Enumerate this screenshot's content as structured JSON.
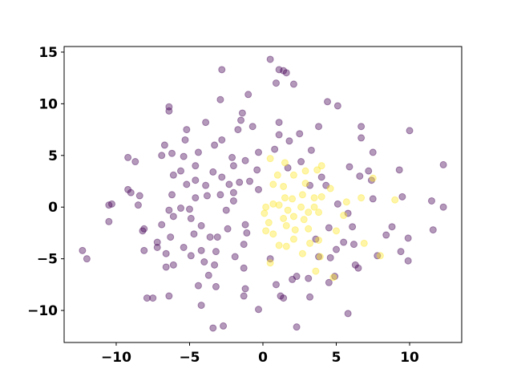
{
  "chart_data": {
    "type": "scatter",
    "xlim": [
      -13.55,
      13.55
    ],
    "ylim": [
      -13.1,
      15.54
    ],
    "xticks": [
      {
        "value": -10,
        "label": "−10"
      },
      {
        "value": -5,
        "label": "−5"
      },
      0,
      5,
      10
    ],
    "yticks": [
      {
        "value": -10,
        "label": "−10"
      },
      {
        "value": -5,
        "label": "−5"
      },
      0,
      5,
      10,
      15
    ],
    "alpha": 0.4,
    "series": [
      {
        "color": "#440154",
        "x": [
          0.5,
          1.1,
          1.4,
          1.6,
          2.1,
          0.9,
          -2.8,
          -1.0,
          -2.9,
          -6.4,
          -6.4,
          -3.9,
          -1.4,
          -1.5,
          -1.7,
          -0.7,
          1.1,
          1.1,
          2.5,
          1.8,
          3.3,
          3.8,
          4.4,
          5.1,
          6.7,
          6.7,
          7.5,
          10.0,
          -5.2,
          -5.3,
          -6.7,
          -6.9,
          -6.2,
          -5.4,
          -4.4,
          -4.6,
          -6.1,
          -5.6,
          -5.2,
          -4.6,
          -3.9,
          -3.4,
          -3.3,
          -2.8,
          -2.1,
          -2.0,
          -1.2,
          -0.3,
          0.8,
          1.7,
          2.6,
          4.0,
          3.2,
          4.3,
          5.9,
          6.6,
          7.2,
          7.4,
          7.5,
          9.3,
          9.5,
          11.5,
          12.3,
          12.3,
          11.6,
          8.8,
          8.4,
          9.9,
          9.9,
          9.4,
          7.8,
          6.2,
          6.3,
          6.5,
          4.6,
          5.0,
          5.5,
          6.1,
          4.5,
          5.8,
          5.1,
          -9.2,
          -8.7,
          -9.2,
          -9.0,
          -8.4,
          -10.5,
          -10.3,
          -10.5,
          -8.5,
          -8.1,
          -8.2,
          -8.1,
          -7.2,
          -6.9,
          -6.4,
          -6.2,
          -5.6,
          -5.0,
          -4.6,
          -3.8,
          -2.9,
          -2.8,
          -2.3,
          -2.0,
          -2.0,
          -1.6,
          -0.9,
          -0.3,
          -0.4,
          -2.5,
          -2.4,
          -3.6,
          -3.1,
          -4.2,
          -4.7,
          -4.9,
          -6.1,
          -6.3,
          -6.6,
          -6.1,
          -6.6,
          -7.2,
          -5.4,
          -4.9,
          -4.2,
          -4.0,
          -3.2,
          -3.3,
          -1.9,
          -1.3,
          -1.1,
          -1.2,
          -3.7,
          -3.2,
          -4.4,
          -6.4,
          -7.5,
          -7.9,
          -4.2,
          -3.4,
          -2.7,
          -1.3,
          -1.2,
          -0.3,
          0.9,
          1.2,
          1.4,
          2.3,
          3.2,
          3.1,
          2.0,
          4.5,
          4.9,
          2.3,
          5.8,
          -12.3,
          -12.0,
          3.8,
          0.5,
          -1.3,
          3.6
        ],
        "y": [
          14.3,
          13.3,
          13.2,
          13.0,
          11.9,
          12.0,
          13.3,
          10.9,
          10.4,
          9.7,
          9.3,
          8.2,
          9.1,
          8.4,
          7.5,
          7.8,
          8.2,
          7.0,
          7.1,
          6.4,
          5.5,
          7.8,
          10.2,
          9.8,
          7.8,
          6.7,
          5.3,
          7.4,
          7.5,
          6.5,
          6.0,
          5.0,
          5.2,
          4.9,
          5.3,
          4.0,
          3.1,
          3.5,
          2.2,
          2.6,
          2.1,
          3.4,
          6.0,
          6.5,
          4.8,
          4.0,
          4.5,
          5.3,
          5.6,
          3.8,
          4.4,
          2.9,
          2.1,
          2.1,
          3.9,
          3.0,
          3.5,
          2.6,
          0.8,
          3.6,
          1.0,
          0.6,
          4.1,
          0,
          -2.2,
          -1.9,
          -2.7,
          -3.0,
          -5.2,
          -4.3,
          -4.7,
          -3.6,
          -5.6,
          -5.9,
          -4.9,
          -4.1,
          -3.4,
          -1.9,
          -2.0,
          -0.6,
          0.3,
          4.8,
          4.4,
          1.7,
          1.4,
          1.1,
          0.2,
          0.3,
          -1.4,
          0.2,
          -2.1,
          -2.3,
          -4.2,
          -3.4,
          -1.7,
          -0.3,
          1.2,
          -0.1,
          -0.2,
          0.9,
          1.1,
          1.2,
          2.9,
          2.2,
          1.4,
          0.6,
          2.4,
          2.5,
          1.7,
          3.6,
          -0.3,
          -2.1,
          -2.9,
          -2.9,
          -1.8,
          -2.6,
          -1.1,
          -0.9,
          -2.9,
          -4.5,
          -5.6,
          -5.8,
          -3.9,
          -3.9,
          -4.7,
          -4.2,
          -5.3,
          -4.3,
          -5.6,
          -4.8,
          -3.6,
          -2.5,
          -1.7,
          -6.6,
          -7.7,
          -7.6,
          -8.6,
          -8.8,
          -8.8,
          -9.5,
          -11.7,
          -11.5,
          -8.6,
          -7.9,
          -9.9,
          -7.5,
          -8.6,
          -8.8,
          -6.7,
          -8.7,
          -6.9,
          -7.0,
          -7.3,
          -6.7,
          -11.6,
          -10.3,
          -4.2,
          -5.0,
          -4.8,
          -5.0,
          -5.9,
          -3.1
        ]
      },
      {
        "color": "#fde725",
        "x": [
          0.5,
          1.5,
          1.0,
          0.7,
          2.1,
          2.9,
          2.9,
          3.7,
          4.0,
          4.6,
          3.5,
          4.0,
          3.5,
          3.8,
          2.6,
          2.0,
          1.5,
          1.1,
          0.7,
          0.2,
          0.1,
          0.4,
          0.2,
          0.7,
          1.4,
          1.7,
          1.6,
          2.1,
          2.8,
          3.1,
          3.8,
          3.2,
          3.9,
          2.7,
          2.1,
          1.6,
          1.1,
          0.5,
          3.6,
          4.8,
          5.5,
          5.7,
          6.7,
          7.5,
          8.0,
          9.0,
          6.9,
          5.0,
          3.1,
          2.7,
          2.2,
          1.4
        ],
        "y": [
          4.7,
          4.3,
          3.1,
          2.2,
          3.1,
          3.5,
          2.3,
          3.6,
          4.0,
          1.8,
          0.9,
          1.0,
          0,
          -0.5,
          0,
          0.8,
          0.9,
          0.2,
          0.3,
          0,
          -0.6,
          -1.5,
          -2.3,
          -2.6,
          -1.1,
          -0.3,
          -1.8,
          -0.9,
          -1.2,
          -2.1,
          -3.2,
          -3.5,
          -4.8,
          -4.5,
          -3.1,
          -3.8,
          -3.7,
          -5.4,
          -6.2,
          -6.8,
          -0.8,
          0.5,
          0.9,
          2.8,
          -4.7,
          0.7,
          -3.5,
          -2.3,
          -0.5,
          1.2,
          -2.2,
          2.0
        ]
      }
    ]
  }
}
